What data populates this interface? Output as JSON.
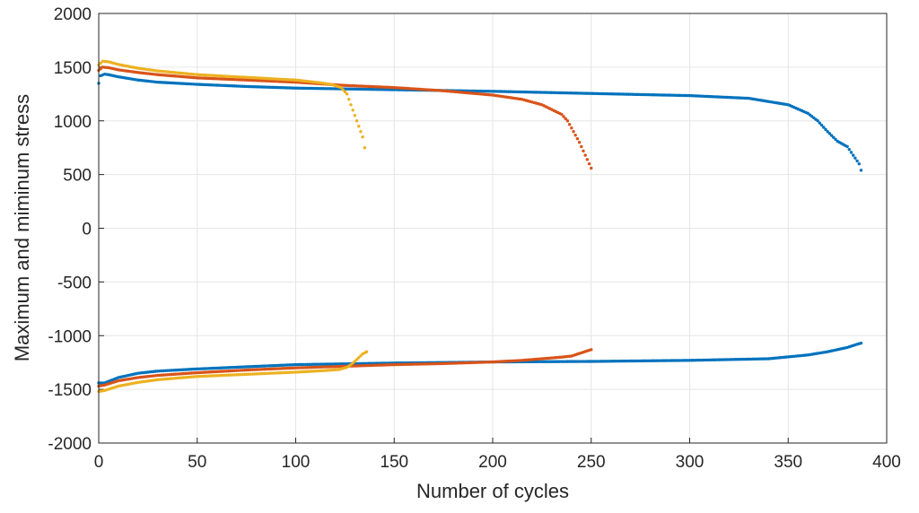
{
  "chart_data": {
    "type": "scatter",
    "xlabel": "Number of cycles",
    "ylabel": "Maximum and miminum stress",
    "xlim": [
      0,
      400
    ],
    "ylim": [
      -2000,
      2000
    ],
    "x_ticks": [
      0,
      50,
      100,
      150,
      200,
      250,
      300,
      350,
      400
    ],
    "y_ticks": [
      -2000,
      -1500,
      -1000,
      -500,
      0,
      500,
      1000,
      1500,
      2000
    ],
    "x_tick_labels": [
      "0",
      "50",
      "100",
      "150",
      "200",
      "250",
      "300",
      "350",
      "400"
    ],
    "y_tick_labels": [
      "-2000",
      "-1500",
      "-1000",
      "-500",
      "0",
      "500",
      "1000",
      "1500",
      "2000"
    ],
    "grid": true,
    "colors": {
      "blue": "#0072bd",
      "orange": "#d95319",
      "yellow": "#edb120"
    },
    "series": [
      {
        "color": "blue",
        "points_max": [
          [
            0,
            1350
          ],
          [
            1,
            1420
          ],
          [
            3,
            1435
          ],
          [
            5,
            1430
          ],
          [
            10,
            1410
          ],
          [
            20,
            1380
          ],
          [
            30,
            1360
          ],
          [
            50,
            1340
          ],
          [
            75,
            1320
          ],
          [
            100,
            1305
          ],
          [
            150,
            1290
          ],
          [
            200,
            1275
          ],
          [
            250,
            1255
          ],
          [
            300,
            1235
          ],
          [
            330,
            1210
          ],
          [
            350,
            1150
          ],
          [
            360,
            1070
          ],
          [
            365,
            1000
          ],
          [
            370,
            900
          ],
          [
            375,
            810
          ],
          [
            380,
            760
          ],
          [
            383,
            680
          ],
          [
            386,
            600
          ],
          [
            387,
            540
          ]
        ],
        "points_min": [
          [
            0,
            -1440
          ],
          [
            3,
            -1440
          ],
          [
            10,
            -1390
          ],
          [
            20,
            -1350
          ],
          [
            30,
            -1330
          ],
          [
            50,
            -1310
          ],
          [
            75,
            -1290
          ],
          [
            100,
            -1270
          ],
          [
            150,
            -1255
          ],
          [
            200,
            -1245
          ],
          [
            250,
            -1240
          ],
          [
            300,
            -1230
          ],
          [
            340,
            -1215
          ],
          [
            360,
            -1180
          ],
          [
            370,
            -1150
          ],
          [
            380,
            -1110
          ],
          [
            385,
            -1080
          ],
          [
            387,
            -1070
          ]
        ]
      },
      {
        "color": "orange",
        "points_max": [
          [
            0,
            1470
          ],
          [
            2,
            1500
          ],
          [
            5,
            1495
          ],
          [
            10,
            1475
          ],
          [
            20,
            1450
          ],
          [
            30,
            1430
          ],
          [
            50,
            1400
          ],
          [
            75,
            1380
          ],
          [
            100,
            1360
          ],
          [
            125,
            1330
          ],
          [
            150,
            1310
          ],
          [
            175,
            1280
          ],
          [
            200,
            1240
          ],
          [
            215,
            1200
          ],
          [
            225,
            1150
          ],
          [
            235,
            1060
          ],
          [
            238,
            1000
          ],
          [
            241,
            900
          ],
          [
            244,
            800
          ],
          [
            247,
            680
          ],
          [
            250,
            560
          ]
        ],
        "points_min": [
          [
            0,
            -1470
          ],
          [
            3,
            -1460
          ],
          [
            10,
            -1420
          ],
          [
            20,
            -1390
          ],
          [
            30,
            -1370
          ],
          [
            50,
            -1345
          ],
          [
            75,
            -1320
          ],
          [
            100,
            -1300
          ],
          [
            125,
            -1285
          ],
          [
            150,
            -1270
          ],
          [
            175,
            -1260
          ],
          [
            200,
            -1245
          ],
          [
            215,
            -1230
          ],
          [
            225,
            -1215
          ],
          [
            235,
            -1200
          ],
          [
            240,
            -1190
          ],
          [
            245,
            -1160
          ],
          [
            250,
            -1130
          ]
        ]
      },
      {
        "color": "yellow",
        "points_max": [
          [
            0,
            1520
          ],
          [
            2,
            1555
          ],
          [
            5,
            1550
          ],
          [
            10,
            1525
          ],
          [
            20,
            1490
          ],
          [
            30,
            1465
          ],
          [
            50,
            1430
          ],
          [
            75,
            1405
          ],
          [
            100,
            1380
          ],
          [
            110,
            1360
          ],
          [
            118,
            1340
          ],
          [
            123,
            1310
          ],
          [
            126,
            1250
          ],
          [
            128,
            1150
          ],
          [
            130,
            1050
          ],
          [
            132,
            950
          ],
          [
            134,
            850
          ],
          [
            135,
            750
          ]
        ],
        "points_min": [
          [
            0,
            -1520
          ],
          [
            3,
            -1510
          ],
          [
            10,
            -1470
          ],
          [
            20,
            -1435
          ],
          [
            30,
            -1410
          ],
          [
            50,
            -1380
          ],
          [
            75,
            -1360
          ],
          [
            100,
            -1340
          ],
          [
            115,
            -1325
          ],
          [
            122,
            -1315
          ],
          [
            126,
            -1295
          ],
          [
            128,
            -1270
          ],
          [
            130,
            -1240
          ],
          [
            132,
            -1205
          ],
          [
            134,
            -1170
          ],
          [
            136,
            -1150
          ]
        ]
      }
    ]
  }
}
